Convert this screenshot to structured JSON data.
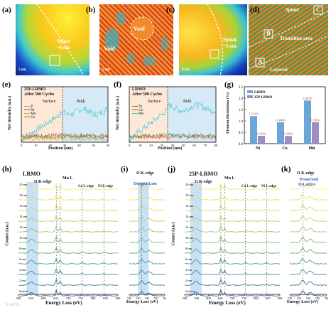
{
  "panels": {
    "a": {
      "label": "(a)",
      "spinel": "Spinel",
      "thickness": "~6 nm",
      "scale": "5 nm"
    },
    "b": {
      "label": "(b)",
      "void1": "Void",
      "void2": "Void",
      "scale": "5 nm"
    },
    "c": {
      "label": "(c)",
      "spinel": "Spinel",
      "thickness": "~3 nm",
      "scale": "8 nm"
    },
    "d": {
      "label": "(d)",
      "spinel": "Spinel",
      "transition": "Transition area",
      "layered": "Layered",
      "regionA": "A",
      "regionB": "B",
      "regionC": "C"
    },
    "e": {
      "label": "(e)",
      "title": "25P-LRMO",
      "subtitle": "After 500 Cycles",
      "surface": "Surface",
      "bulk": "Bulk",
      "xlabel": "Position (nm)",
      "ylabel": "Net Intensity (a.u.)",
      "legend": [
        "P",
        "Ni",
        "Mn",
        "Co"
      ],
      "xticks": [
        "0",
        "10",
        "20",
        "30",
        "40",
        "50",
        "60"
      ]
    },
    "f": {
      "label": "(f)",
      "title": "LRMO",
      "subtitle": "After 500 Cycles",
      "surface": "Surface",
      "bulk": "Bulk",
      "xlabel": "Position (nm)",
      "ylabel": "Net Intensity (a.u.)",
      "legend": [
        "Ni",
        "Co",
        "Mn"
      ],
      "xticks": [
        "0",
        "10",
        "20",
        "30",
        "40",
        "50",
        "60",
        "70",
        "80"
      ]
    },
    "g": {
      "label": "(g)",
      "ylabel": "Element Dissolution (%)"
    },
    "h": {
      "label": "(h)",
      "title": "LRMO",
      "o_edge": "O K-edge",
      "mn_edge": "Mn L",
      "co_edge": "Co L-edge",
      "ni_edge": "Ni L-edge",
      "xlabel": "Energy Loss (eV)",
      "ylabel": "Counts (a.u.)",
      "xticks": [
        "500",
        "550",
        "600",
        "650",
        "700",
        "750",
        "800",
        "850",
        "900"
      ]
    },
    "i": {
      "label": "(i)",
      "o_edge": "O K-edge",
      "note": "Oxygen Loss",
      "xlabel": "Energy Loss (eV)",
      "xticks": [
        "520",
        "530",
        "540",
        "550",
        "560"
      ]
    },
    "j": {
      "label": "(j)",
      "title": "25P-LRMO",
      "o_edge": "O K-edge",
      "mn_edge": "Mn L",
      "co_edge": "Co L-edge",
      "ni_edge": "Ni L-edge",
      "xlabel": "Energy Loss (eV)",
      "ylabel": "Counts (a.u.)",
      "xticks": [
        "500",
        "550",
        "600",
        "650",
        "700",
        "750",
        "800",
        "850",
        "900"
      ]
    },
    "k": {
      "label": "(k)",
      "o_edge": "O K-edge",
      "note1": "Preserved",
      "note2": "O Lattice",
      "xlabel": "Energy Loss (eV)",
      "xticks": [
        "520",
        "530",
        "540",
        "550",
        "560"
      ]
    }
  },
  "depth_labels": [
    "20 nm",
    "18 nm",
    "16 nm",
    "14 nm",
    "12 nm",
    "10 nm",
    "8 nm",
    "6 nm",
    "4 nm",
    "2 nm",
    "Surface"
  ],
  "chart_data": [
    {
      "type": "bar",
      "panel": "g",
      "categories": [
        "Ni",
        "Co",
        "Mn"
      ],
      "series": [
        {
          "name": "LRMO",
          "values": [
            1.212,
            0.94,
            1.897
          ],
          "value_labels": [
            "1.212%",
            "0.940%",
            "1.897%"
          ],
          "color": "#6aa6d8"
        },
        {
          "name": "25P-LRMO",
          "values": [
            0.343,
            0.336,
            0.938
          ],
          "value_labels": [
            "0.343%",
            "0.336%",
            "0.938%"
          ],
          "color": "#9b8dc6"
        }
      ],
      "ylabel": "Element Dissolution (%)",
      "ylim": [
        0,
        2.5
      ],
      "yticks": [
        "0.0",
        "0.5",
        "1.0",
        "1.5",
        "2.0",
        "2.5"
      ],
      "legend": "top-left"
    }
  ],
  "footer": {
    "watermark": "X-MOL"
  }
}
